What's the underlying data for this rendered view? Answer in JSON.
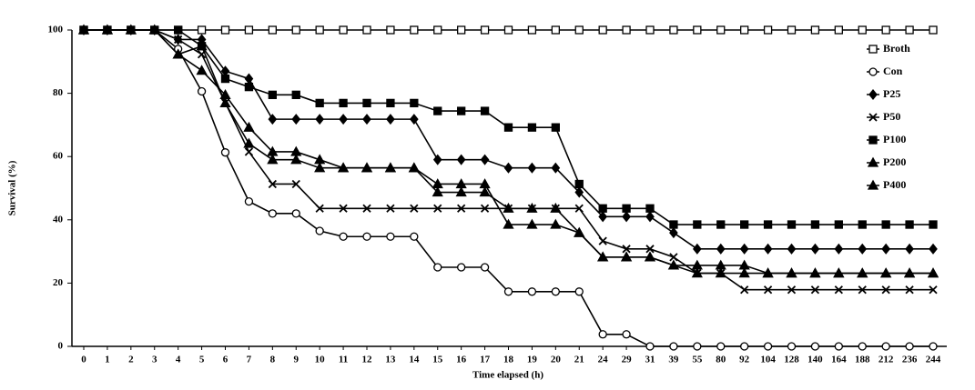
{
  "chart_data": {
    "type": "line",
    "x_label": "Time elapsed (h)",
    "y_label": "Survival (%)",
    "categories": [
      "0",
      "1",
      "2",
      "3",
      "4",
      "5",
      "6",
      "7",
      "8",
      "9",
      "10",
      "11",
      "12",
      "13",
      "14",
      "15",
      "16",
      "17",
      "18",
      "19",
      "20",
      "21",
      "24",
      "29",
      "31",
      "39",
      "55",
      "80",
      "92",
      "104",
      "128",
      "140",
      "164",
      "188",
      "212",
      "236",
      "244"
    ],
    "ylim": [
      0,
      100
    ],
    "yticks": [
      0,
      20,
      40,
      60,
      80,
      100
    ],
    "grid": false,
    "legend": "top-right",
    "series": [
      {
        "name": "Broth",
        "color": "#000000",
        "marker": "square-open",
        "values": [
          100,
          100,
          100,
          100,
          100,
          100,
          100,
          100,
          100,
          100,
          100,
          100,
          100,
          100,
          100,
          100,
          100,
          100,
          100,
          100,
          100,
          100,
          100,
          100,
          100,
          100,
          100,
          100,
          100,
          100,
          100,
          100,
          100,
          100,
          100,
          100,
          100
        ]
      },
      {
        "name": "Con",
        "color": "#000000",
        "marker": "circle-open",
        "values": [
          100,
          100,
          100,
          100,
          94,
          80.6,
          61.3,
          45.8,
          42,
          42,
          36.5,
          34.7,
          34.7,
          34.7,
          34.7,
          25,
          25,
          25,
          17.3,
          17.3,
          17.3,
          17.3,
          3.8,
          3.8,
          0,
          0,
          0,
          0,
          0,
          0,
          0,
          0,
          0,
          0,
          0,
          0,
          0
        ]
      },
      {
        "name": "P25",
        "color": "#000000",
        "marker": "diamond",
        "values": [
          100,
          100,
          100,
          100,
          97,
          97,
          87,
          84.6,
          71.8,
          71.8,
          71.8,
          71.8,
          71.8,
          71.8,
          71.8,
          59,
          59,
          59,
          56.4,
          56.4,
          56.4,
          48.7,
          41,
          41,
          41,
          35.9,
          30.8,
          30.8,
          30.8,
          30.8,
          30.8,
          30.8,
          30.8,
          30.8,
          30.8,
          30.8,
          30.8
        ]
      },
      {
        "name": "P50",
        "color": "#000000",
        "marker": "x",
        "values": [
          100,
          100,
          100,
          100,
          97,
          92.3,
          77,
          61.5,
          51.3,
          51.3,
          43.6,
          43.6,
          43.6,
          43.6,
          43.6,
          43.6,
          43.6,
          43.6,
          43.6,
          43.6,
          43.6,
          43.6,
          33.3,
          30.8,
          30.8,
          28.2,
          23.1,
          23.1,
          17.9,
          17.9,
          17.9,
          17.9,
          17.9,
          17.9,
          17.9,
          17.9,
          17.9
        ]
      },
      {
        "name": "P100",
        "color": "#000000",
        "marker": "square",
        "values": [
          100,
          100,
          100,
          100,
          100,
          94.9,
          84.6,
          82,
          79.5,
          79.5,
          76.9,
          76.9,
          76.9,
          76.9,
          76.9,
          74.4,
          74.4,
          74.4,
          69.2,
          69.2,
          69.2,
          51.3,
          43.6,
          43.6,
          43.6,
          38.5,
          38.5,
          38.5,
          38.5,
          38.5,
          38.5,
          38.5,
          38.5,
          38.5,
          38.5,
          38.5,
          38.5
        ]
      },
      {
        "name": "P200",
        "color": "#000000",
        "marker": "triangle",
        "values": [
          100,
          100,
          100,
          100,
          92.3,
          87.2,
          79.5,
          69.2,
          61.5,
          61.5,
          59,
          56.4,
          56.4,
          56.4,
          56.4,
          48.7,
          48.7,
          48.7,
          43.6,
          43.6,
          43.6,
          35.9,
          28.2,
          28.2,
          28.2,
          25.6,
          25.6,
          25.6,
          25.6,
          23.1,
          23.1,
          23.1,
          23.1,
          23.1,
          23.1,
          23.1,
          23.1
        ]
      },
      {
        "name": "P400",
        "color": "#000000",
        "marker": "triangle",
        "values": [
          100,
          100,
          100,
          100,
          92.3,
          94.9,
          76.9,
          64.1,
          59,
          59,
          56.4,
          56.4,
          56.4,
          56.4,
          56.4,
          51.3,
          51.3,
          51.3,
          38.5,
          38.5,
          38.5,
          35.9,
          28.2,
          28.2,
          28.2,
          25.6,
          23.1,
          23.1,
          23.1,
          23.1,
          23.1,
          23.1,
          23.1,
          23.1,
          23.1,
          23.1,
          23.1
        ]
      }
    ]
  }
}
